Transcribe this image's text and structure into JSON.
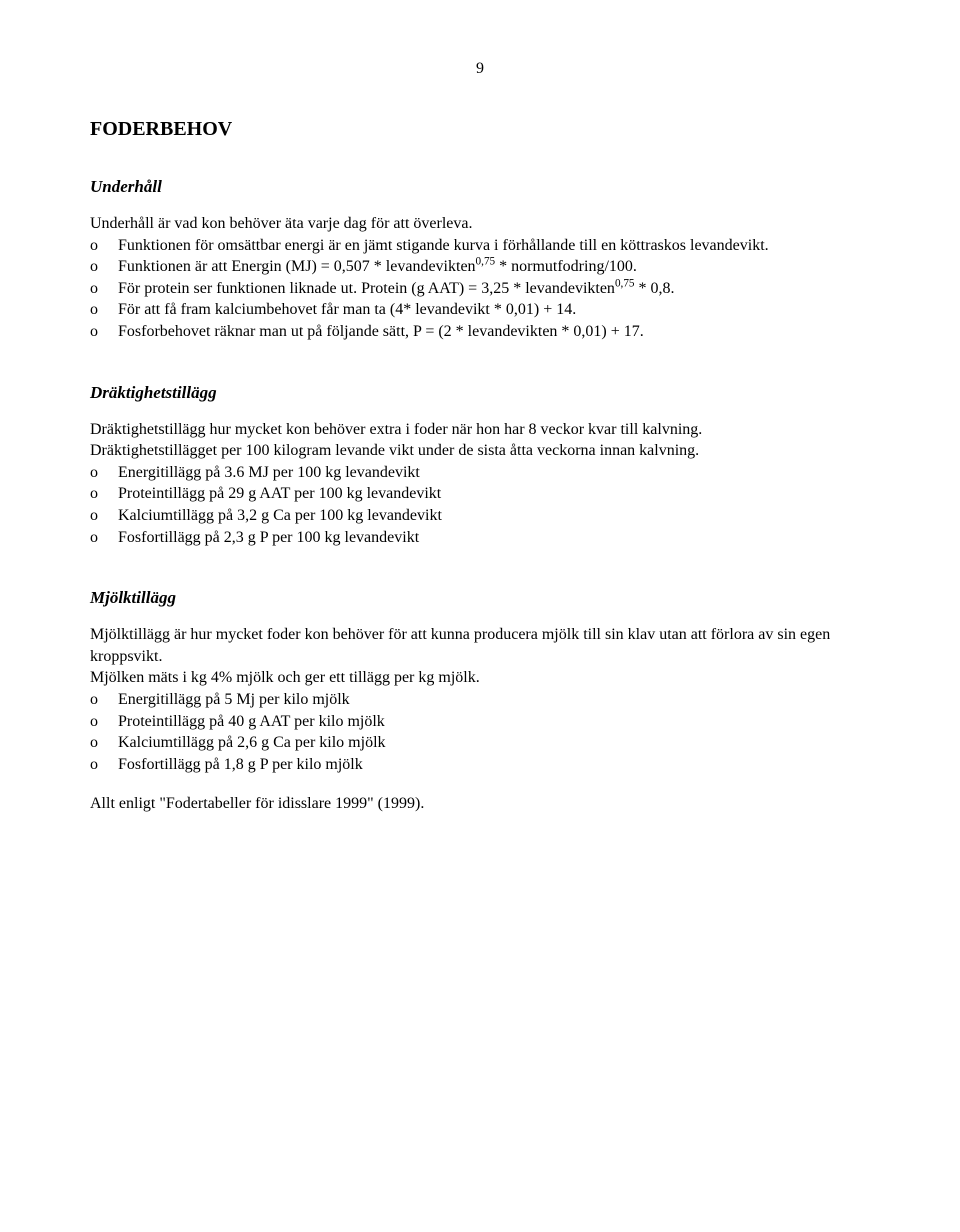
{
  "page_number": "9",
  "main_heading": "FODERBEHOV",
  "sections": {
    "underhall": {
      "heading": "Underhåll",
      "intro": "Underhåll är vad kon behöver äta varje dag för att överleva.",
      "items": [
        "Funktionen för omsättbar energi är en jämt stigande kurva i förhållande till en köttraskos levandevikt.",
        "Funktionen är att Energin (MJ) = 0,507 * levandevikten^{0,75} * normutfodring/100.",
        "För protein ser funktionen liknade ut. Protein (g AAT) = 3,25 * levandevikten^{0,75} * 0,8.",
        "För att få fram kalciumbehovet får man ta (4* levandevikt * 0,01) + 14.",
        "Fosforbehovet räknar man ut på följande sätt, P = (2 * levandevikten * 0,01) + 17."
      ]
    },
    "draktighet": {
      "heading": "Dräktighetstillägg",
      "intro1": "Dräktighetstillägg hur mycket kon behöver extra i foder när hon har 8 veckor kvar till kalvning.",
      "intro2": "Dräktighetstillägget per 100 kilogram levande vikt under de sista åtta veckorna innan kalvning.",
      "items": [
        "Energitillägg på 3.6 MJ  per 100 kg levandevikt",
        "Proteintillägg på 29 g AAT per 100 kg levandevikt",
        "Kalciumtillägg på 3,2 g Ca per 100 kg levandevikt",
        "Fosfortillägg på 2,3 g P per 100 kg levandevikt"
      ]
    },
    "mjolk": {
      "heading": "Mjölktillägg",
      "intro1": "Mjölktillägg är hur mycket foder kon behöver för att kunna producera mjölk till sin klav utan att förlora av sin egen kroppsvikt.",
      "intro2": "Mjölken mäts i kg 4% mjölk och ger ett tillägg per kg mjölk.",
      "items": [
        "Energitillägg på 5 Mj per kilo mjölk",
        "Proteintillägg på 40 g AAT per kilo mjölk",
        "Kalciumtillägg på 2,6 g Ca per kilo mjölk",
        "Fosfortillägg på 1,8 g P per kilo mjölk"
      ]
    }
  },
  "footer": "Allt enligt \"Fodertabeller för idisslare 1999\" (1999).",
  "list_marker": "o"
}
